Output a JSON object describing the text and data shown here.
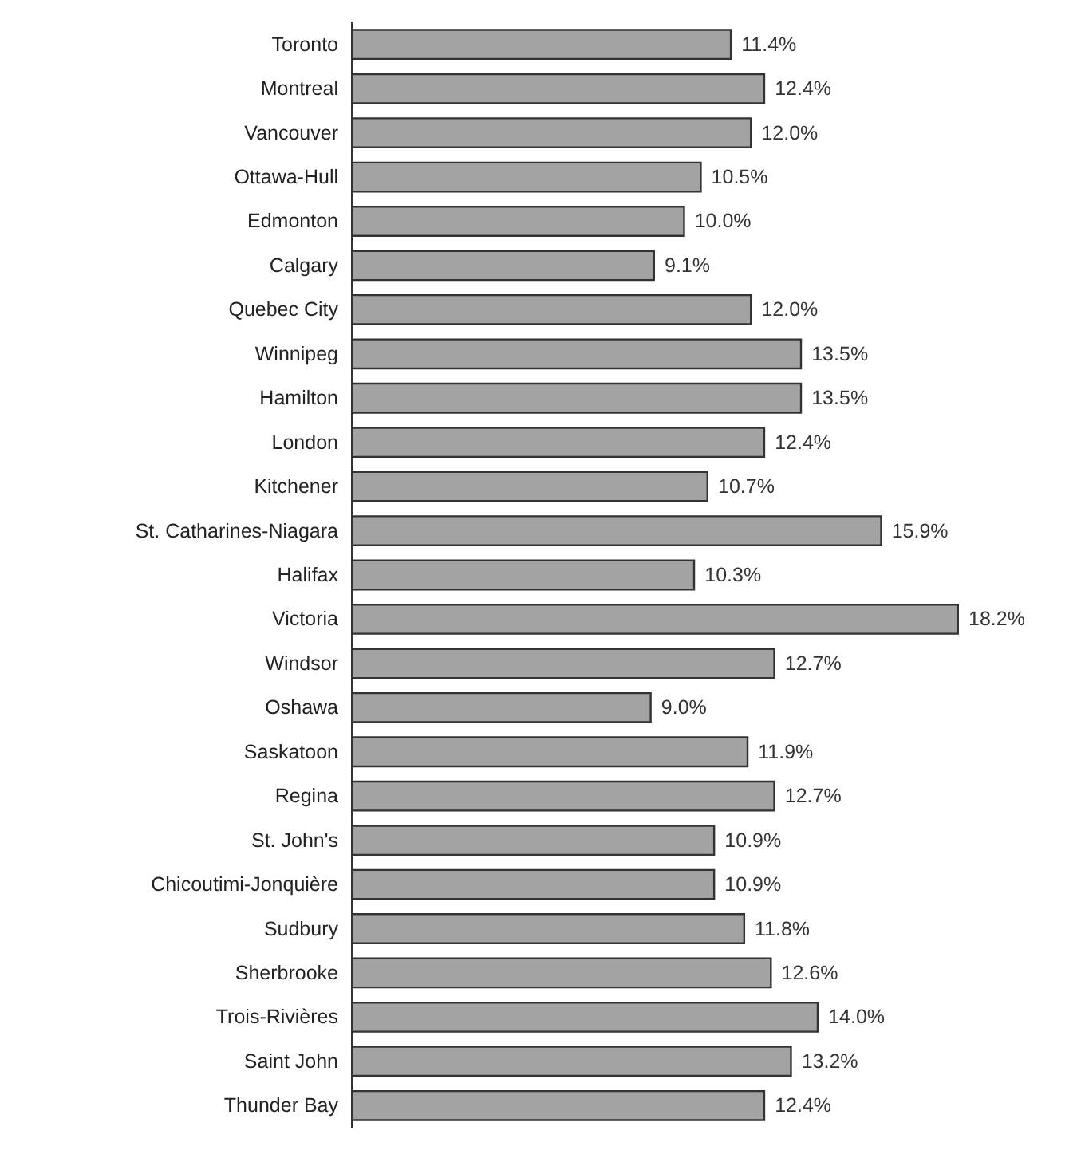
{
  "chart_data": {
    "type": "bar",
    "orientation": "horizontal",
    "categories": [
      "Toronto",
      "Montreal",
      "Vancouver",
      "Ottawa-Hull",
      "Edmonton",
      "Calgary",
      "Quebec City",
      "Winnipeg",
      "Hamilton",
      "London",
      "Kitchener",
      "St. Catharines-Niagara",
      "Halifax",
      "Victoria",
      "Windsor",
      "Oshawa",
      "Saskatoon",
      "Regina",
      "St. John's",
      "Chicoutimi-Jonquière",
      "Sudbury",
      "Sherbrooke",
      "Trois-Rivières",
      "Saint John",
      "Thunder Bay"
    ],
    "values": [
      11.4,
      12.4,
      12.0,
      10.5,
      10.0,
      9.1,
      12.0,
      13.5,
      13.5,
      12.4,
      10.7,
      15.9,
      10.3,
      18.2,
      12.7,
      9.0,
      11.9,
      12.7,
      10.9,
      10.9,
      11.8,
      12.6,
      14.0,
      13.2,
      12.4
    ],
    "value_labels": [
      "11.4%",
      "12.4%",
      "12.0%",
      "10.5%",
      "10.0%",
      "9.1%",
      "12.0%",
      "13.5%",
      "13.5%",
      "12.4%",
      "10.7%",
      "15.9%",
      "10.3%",
      "18.2%",
      "12.7%",
      "9.0%",
      "11.9%",
      "12.7%",
      "10.9%",
      "10.9%",
      "11.8%",
      "12.6%",
      "14.0%",
      "13.2%",
      "12.4%"
    ],
    "color": "#a3a3a3"
  }
}
